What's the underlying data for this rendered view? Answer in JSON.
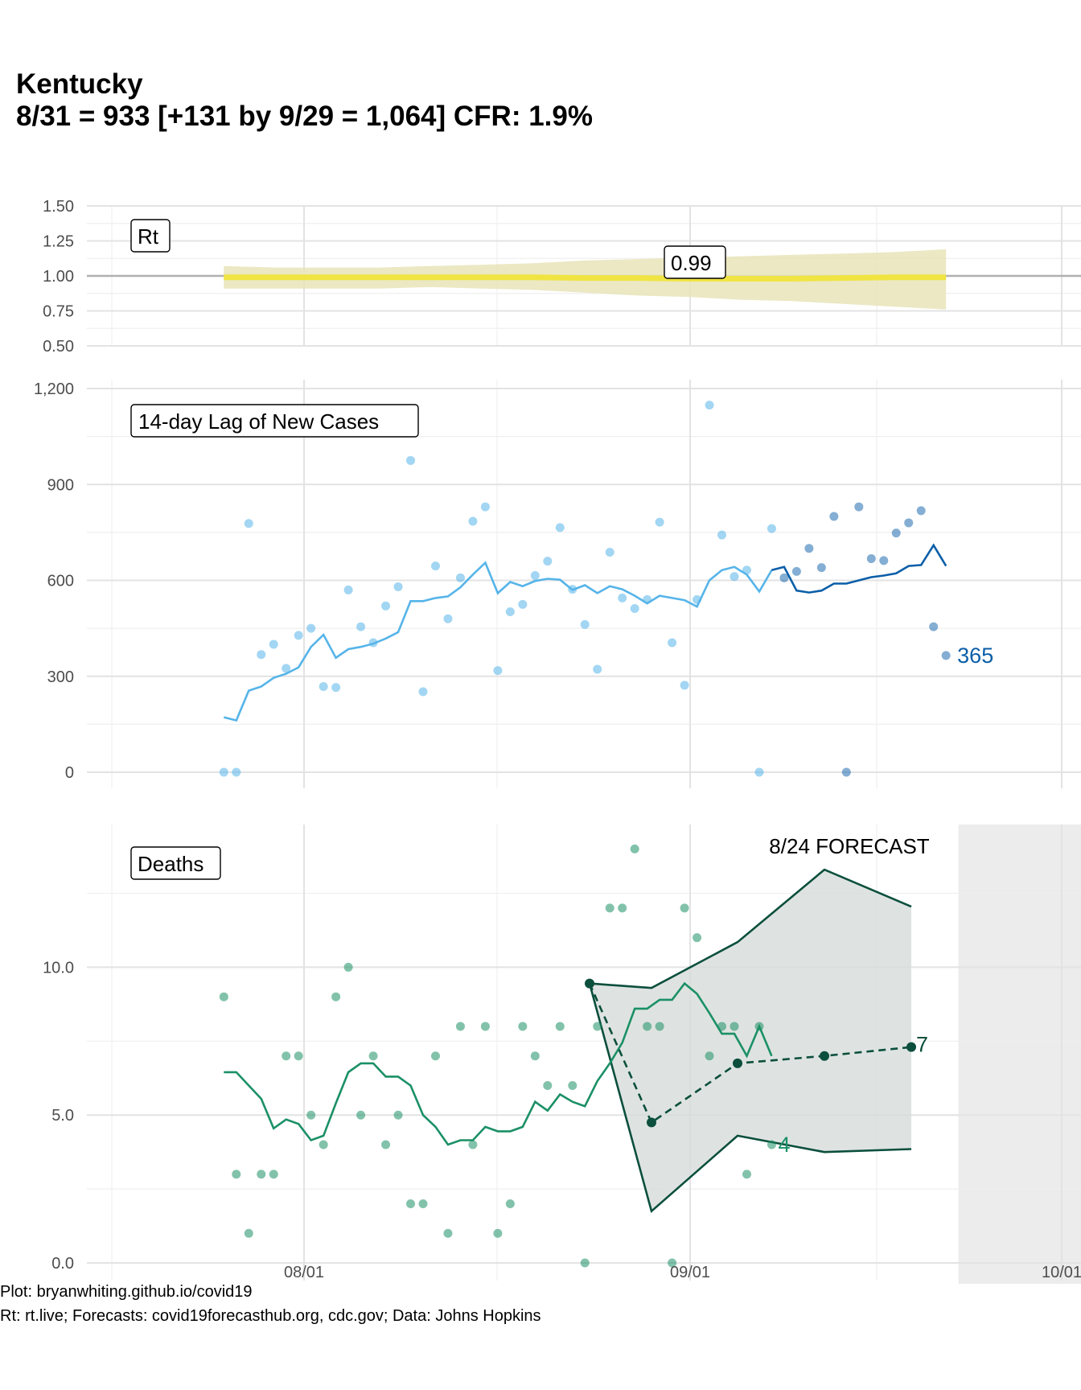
{
  "title_line1": "Kentucky",
  "title_line2": "8/31 = 933 [+131 by 9/29 = 1,064] CFR: 1.9%",
  "caption_line1": "Plot: bryanwhiting.github.io/covid19",
  "caption_line2": "Rt: rt.live; Forecasts: covid19forecasthub.org, cdc.gov; Data: Johns Hopkins",
  "x_ticks": [
    "08/01",
    "09/01",
    "10/01"
  ],
  "colors": {
    "rt_line": "#f0e442",
    "rt_band": "#e8e4b8",
    "cases_light": "#56b4e9",
    "cases_dark": "#0a5ea8",
    "deaths": "#1b9066",
    "forecast": "#0b4f3c",
    "forecast_bg": "#ececec",
    "forecast_band": "#d6dcd9"
  },
  "chart_data": [
    {
      "type": "area",
      "panel": "Rt",
      "label": "Rt",
      "end_label": "0.99",
      "yticks": [
        "1.50",
        "1.25",
        "1.00",
        "0.75",
        "0.50"
      ],
      "ylim": [
        0.5,
        1.5
      ],
      "reference_line": 1.0,
      "x_start": "2020-07-01",
      "x_end": "2020-08-28",
      "series_mean": [
        0.99,
        0.99,
        0.99,
        0.99,
        0.99,
        0.99,
        0.99,
        0.985,
        0.985,
        0.98,
        0.98,
        0.98,
        0.985,
        0.99,
        0.99
      ],
      "series_upper": [
        1.07,
        1.06,
        1.06,
        1.06,
        1.07,
        1.08,
        1.09,
        1.11,
        1.12,
        1.13,
        1.14,
        1.15,
        1.16,
        1.17,
        1.19
      ],
      "series_lower": [
        0.91,
        0.91,
        0.91,
        0.91,
        0.92,
        0.91,
        0.9,
        0.88,
        0.86,
        0.85,
        0.83,
        0.82,
        0.8,
        0.78,
        0.76
      ]
    },
    {
      "type": "scatter",
      "panel": "cases",
      "label": "14-day Lag of New Cases",
      "end_label": "365",
      "yticks": [
        "1,200",
        "900",
        "600",
        "300",
        "0"
      ],
      "ylim": [
        0,
        1200
      ],
      "points_light": [
        [
          "2020-07-01",
          0
        ],
        [
          "2020-07-02",
          0
        ],
        [
          "2020-07-03",
          778
        ],
        [
          "2020-07-04",
          368
        ],
        [
          "2020-07-05",
          400
        ],
        [
          "2020-07-06",
          325
        ],
        [
          "2020-07-07",
          428
        ],
        [
          "2020-07-08",
          450
        ],
        [
          "2020-07-09",
          268
        ],
        [
          "2020-07-10",
          265
        ],
        [
          "2020-07-11",
          570
        ],
        [
          "2020-07-12",
          455
        ],
        [
          "2020-07-13",
          405
        ],
        [
          "2020-07-14",
          520
        ],
        [
          "2020-07-15",
          580
        ],
        [
          "2020-07-16",
          975
        ],
        [
          "2020-07-17",
          252
        ],
        [
          "2020-07-18",
          645
        ],
        [
          "2020-07-19",
          480
        ],
        [
          "2020-07-20",
          608
        ],
        [
          "2020-07-21",
          785
        ],
        [
          "2020-07-22",
          830
        ],
        [
          "2020-07-23",
          318
        ],
        [
          "2020-07-24",
          502
        ],
        [
          "2020-07-25",
          525
        ],
        [
          "2020-07-26",
          615
        ],
        [
          "2020-07-27",
          660
        ],
        [
          "2020-07-28",
          765
        ],
        [
          "2020-07-29",
          572
        ],
        [
          "2020-07-30",
          462
        ],
        [
          "2020-07-31",
          322
        ],
        [
          "2020-08-01",
          688
        ],
        [
          "2020-08-02",
          545
        ],
        [
          "2020-08-03",
          512
        ],
        [
          "2020-08-04",
          540
        ],
        [
          "2020-08-05",
          782
        ],
        [
          "2020-08-06",
          405
        ],
        [
          "2020-08-07",
          272
        ],
        [
          "2020-08-08",
          540
        ],
        [
          "2020-08-09",
          1148
        ],
        [
          "2020-08-10",
          742
        ],
        [
          "2020-08-11",
          612
        ],
        [
          "2020-08-12",
          632
        ],
        [
          "2020-08-13",
          0
        ],
        [
          "2020-08-14",
          762
        ]
      ],
      "points_dark": [
        [
          "2020-08-15",
          608
        ],
        [
          "2020-08-16",
          628
        ],
        [
          "2020-08-17",
          700
        ],
        [
          "2020-08-18",
          640
        ],
        [
          "2020-08-19",
          800
        ],
        [
          "2020-08-20",
          0
        ],
        [
          "2020-08-21",
          830
        ],
        [
          "2020-08-22",
          668
        ],
        [
          "2020-08-23",
          662
        ],
        [
          "2020-08-24",
          748
        ],
        [
          "2020-08-25",
          780
        ],
        [
          "2020-08-26",
          818
        ],
        [
          "2020-08-27",
          455
        ],
        [
          "2020-08-28",
          365
        ]
      ],
      "line_light": [
        [
          "2020-07-01",
          172
        ],
        [
          "2020-07-02",
          162
        ],
        [
          "2020-07-03",
          255
        ],
        [
          "2020-07-04",
          268
        ],
        [
          "2020-07-05",
          295
        ],
        [
          "2020-07-06",
          308
        ],
        [
          "2020-07-07",
          328
        ],
        [
          "2020-07-08",
          392
        ],
        [
          "2020-07-09",
          430
        ],
        [
          "2020-07-10",
          358
        ],
        [
          "2020-07-11",
          385
        ],
        [
          "2020-07-12",
          392
        ],
        [
          "2020-07-13",
          402
        ],
        [
          "2020-07-14",
          418
        ],
        [
          "2020-07-15",
          438
        ],
        [
          "2020-07-16",
          535
        ],
        [
          "2020-07-17",
          535
        ],
        [
          "2020-07-18",
          545
        ],
        [
          "2020-07-19",
          550
        ],
        [
          "2020-07-20",
          578
        ],
        [
          "2020-07-21",
          618
        ],
        [
          "2020-07-22",
          655
        ],
        [
          "2020-07-23",
          560
        ],
        [
          "2020-07-24",
          595
        ],
        [
          "2020-07-25",
          582
        ],
        [
          "2020-07-26",
          598
        ],
        [
          "2020-07-27",
          605
        ],
        [
          "2020-07-28",
          602
        ],
        [
          "2020-07-29",
          570
        ],
        [
          "2020-07-30",
          585
        ],
        [
          "2020-07-31",
          560
        ],
        [
          "2020-08-01",
          582
        ],
        [
          "2020-08-02",
          572
        ],
        [
          "2020-08-03",
          552
        ],
        [
          "2020-08-04",
          528
        ],
        [
          "2020-08-05",
          552
        ],
        [
          "2020-08-06",
          545
        ],
        [
          "2020-08-07",
          538
        ],
        [
          "2020-08-08",
          518
        ],
        [
          "2020-08-09",
          600
        ],
        [
          "2020-08-10",
          632
        ],
        [
          "2020-08-11",
          642
        ],
        [
          "2020-08-12",
          618
        ],
        [
          "2020-08-13",
          565
        ],
        [
          "2020-08-14",
          632
        ]
      ],
      "line_dark": [
        [
          "2020-08-14",
          632
        ],
        [
          "2020-08-15",
          642
        ],
        [
          "2020-08-16",
          568
        ],
        [
          "2020-08-17",
          562
        ],
        [
          "2020-08-18",
          568
        ],
        [
          "2020-08-19",
          590
        ],
        [
          "2020-08-20",
          590
        ],
        [
          "2020-08-21",
          600
        ],
        [
          "2020-08-22",
          610
        ],
        [
          "2020-08-23",
          615
        ],
        [
          "2020-08-24",
          622
        ],
        [
          "2020-08-25",
          645
        ],
        [
          "2020-08-26",
          648
        ],
        [
          "2020-08-27",
          710
        ],
        [
          "2020-08-28",
          645
        ]
      ]
    },
    {
      "type": "line",
      "panel": "deaths",
      "label": "Deaths",
      "end_label": "4",
      "forecast_label": "8/24 FORECAST",
      "forecast_end_label": "7",
      "yticks": [
        "10.0",
        "5.0",
        "0.0"
      ],
      "ylim": [
        0,
        14.8
      ],
      "forecast_window": [
        "2020-08-29",
        "2020-09-29"
      ],
      "points": [
        [
          "2020-07-01",
          9
        ],
        [
          "2020-07-02",
          3
        ],
        [
          "2020-07-03",
          1
        ],
        [
          "2020-07-04",
          3
        ],
        [
          "2020-07-05",
          3
        ],
        [
          "2020-07-06",
          7
        ],
        [
          "2020-07-07",
          7
        ],
        [
          "2020-07-08",
          5
        ],
        [
          "2020-07-09",
          4
        ],
        [
          "2020-07-10",
          9
        ],
        [
          "2020-07-11",
          10
        ],
        [
          "2020-07-12",
          5
        ],
        [
          "2020-07-13",
          7
        ],
        [
          "2020-07-14",
          4
        ],
        [
          "2020-07-15",
          5
        ],
        [
          "2020-07-16",
          2
        ],
        [
          "2020-07-17",
          2
        ],
        [
          "2020-07-18",
          7
        ],
        [
          "2020-07-19",
          1
        ],
        [
          "2020-07-20",
          8
        ],
        [
          "2020-07-21",
          4
        ],
        [
          "2020-07-22",
          8
        ],
        [
          "2020-07-23",
          1
        ],
        [
          "2020-07-24",
          2
        ],
        [
          "2020-07-25",
          8
        ],
        [
          "2020-07-26",
          7
        ],
        [
          "2020-07-27",
          6
        ],
        [
          "2020-07-28",
          8
        ],
        [
          "2020-07-29",
          6
        ],
        [
          "2020-07-30",
          0
        ],
        [
          "2020-07-31",
          8
        ],
        [
          "2020-08-01",
          12
        ],
        [
          "2020-08-02",
          12
        ],
        [
          "2020-08-03",
          14
        ],
        [
          "2020-08-04",
          8
        ],
        [
          "2020-08-05",
          8
        ],
        [
          "2020-08-06",
          0
        ],
        [
          "2020-08-07",
          12
        ],
        [
          "2020-08-08",
          11
        ],
        [
          "2020-08-09",
          7
        ],
        [
          "2020-08-10",
          8
        ],
        [
          "2020-08-11",
          8
        ],
        [
          "2020-08-12",
          3
        ],
        [
          "2020-08-13",
          8
        ],
        [
          "2020-08-14",
          4
        ]
      ],
      "line": [
        [
          "2020-07-01",
          6.45
        ],
        [
          "2020-07-02",
          6.45
        ],
        [
          "2020-07-03",
          6.0
        ],
        [
          "2020-07-04",
          5.55
        ],
        [
          "2020-07-05",
          4.55
        ],
        [
          "2020-07-06",
          4.85
        ],
        [
          "2020-07-07",
          4.7
        ],
        [
          "2020-07-08",
          4.15
        ],
        [
          "2020-07-09",
          4.3
        ],
        [
          "2020-07-10",
          5.4
        ],
        [
          "2020-07-11",
          6.45
        ],
        [
          "2020-07-12",
          6.75
        ],
        [
          "2020-07-13",
          6.75
        ],
        [
          "2020-07-14",
          6.3
        ],
        [
          "2020-07-15",
          6.3
        ],
        [
          "2020-07-16",
          6.0
        ],
        [
          "2020-07-17",
          5.0
        ],
        [
          "2020-07-18",
          4.6
        ],
        [
          "2020-07-19",
          4.0
        ],
        [
          "2020-07-20",
          4.15
        ],
        [
          "2020-07-21",
          4.15
        ],
        [
          "2020-07-22",
          4.6
        ],
        [
          "2020-07-23",
          4.45
        ],
        [
          "2020-07-24",
          4.45
        ],
        [
          "2020-07-25",
          4.6
        ],
        [
          "2020-07-26",
          5.45
        ],
        [
          "2020-07-27",
          5.15
        ],
        [
          "2020-07-28",
          5.7
        ],
        [
          "2020-07-29",
          5.45
        ],
        [
          "2020-07-30",
          5.3
        ],
        [
          "2020-07-31",
          6.15
        ],
        [
          "2020-08-01",
          6.75
        ],
        [
          "2020-08-02",
          7.45
        ],
        [
          "2020-08-03",
          8.6
        ],
        [
          "2020-08-04",
          8.6
        ],
        [
          "2020-08-05",
          8.9
        ],
        [
          "2020-08-06",
          8.9
        ],
        [
          "2020-08-07",
          9.45
        ],
        [
          "2020-08-08",
          9.1
        ],
        [
          "2020-08-09",
          8.45
        ],
        [
          "2020-08-10",
          7.75
        ],
        [
          "2020-08-11",
          7.75
        ],
        [
          "2020-08-12",
          7.0
        ],
        [
          "2020-08-13",
          8.0
        ],
        [
          "2020-08-14",
          7.0
        ]
      ],
      "forecast_points": [
        [
          "2020-08-07",
          9.45
        ],
        [
          "2020-08-12",
          4.75
        ],
        [
          "2020-08-19",
          6.75
        ],
        [
          "2020-08-26",
          7.0
        ],
        [
          "2020-09-02",
          7.3
        ]
      ],
      "forecast_upper": [
        [
          "2020-08-07",
          9.45
        ],
        [
          "2020-08-12",
          9.3
        ],
        [
          "2020-08-19",
          10.85
        ],
        [
          "2020-08-26",
          13.3
        ],
        [
          "2020-09-02",
          12.05
        ]
      ],
      "forecast_lower": [
        [
          "2020-08-07",
          9.45
        ],
        [
          "2020-08-12",
          1.75
        ],
        [
          "2020-08-19",
          4.3
        ],
        [
          "2020-08-26",
          3.75
        ],
        [
          "2020-09-02",
          3.85
        ]
      ]
    }
  ]
}
